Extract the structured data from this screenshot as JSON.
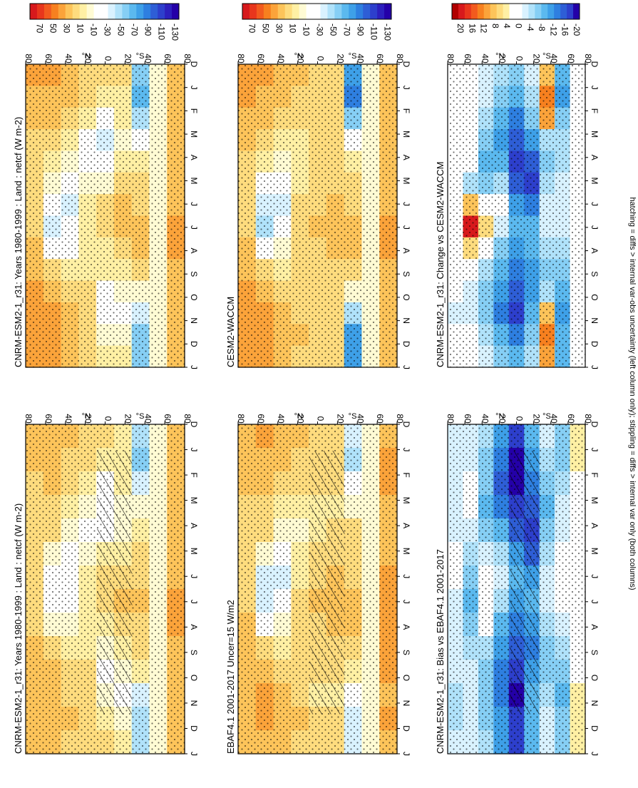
{
  "figure_caption": "hatching = diffs > internal var-obs uncertainty (left column only); stippling = diffs > internal var only (both columns)",
  "colorbars": {
    "absolute": {
      "labels": [
        "70",
        "50",
        "30",
        "10",
        "-10",
        "-30",
        "-50",
        "-70",
        "-90",
        "-110",
        "-130"
      ]
    },
    "difference": {
      "labels": [
        "20",
        "16",
        "12",
        "8",
        "4",
        "0",
        "-4",
        "-8",
        "-12",
        "-16",
        "-20"
      ]
    }
  },
  "palette": {
    "absolute": [
      "#d7191c",
      "#e8361c",
      "#f25a1e",
      "#f7801f",
      "#fba33a",
      "#fdc45a",
      "#fedc7e",
      "#fff0a4",
      "#fffbd4",
      "#ffffff",
      "#ffffff",
      "#d9f2ff",
      "#b0e2fa",
      "#86cff5",
      "#5bb9ef",
      "#3ea0e8",
      "#2e7fe0",
      "#2e5ed6",
      "#2d3fcc",
      "#2c1fbd",
      "#2400a8"
    ],
    "difference": [
      "#b10000",
      "#d7191c",
      "#e8361c",
      "#f25a1e",
      "#f7801f",
      "#fba33a",
      "#fdc45a",
      "#fedc7e",
      "#fff0a4",
      "#ffffff",
      "#ffffff",
      "#d9f2ff",
      "#b0e2fa",
      "#86cff5",
      "#5bb9ef",
      "#3ea0e8",
      "#2e7fe0",
      "#2e5ed6",
      "#2d3fcc",
      "#2400a8"
    ]
  },
  "chart_data": [
    {
      "type": "heatmap",
      "title": "CNRM-ESM2-1_r31: Years 1980-1999 : Land : netcf (W m-2)",
      "x_ticks": [
        "D",
        "J",
        "F",
        "M",
        "A",
        "M",
        "J",
        "J",
        "A",
        "S",
        "O",
        "N",
        "D",
        "J"
      ],
      "y_ticks": [
        "80",
        "60",
        "40",
        "20",
        "0",
        "20",
        "40",
        "60",
        "80"
      ],
      "y_hemisphere_labels": [
        "°N",
        "°S"
      ],
      "colorbar": "absolute",
      "hatching": true,
      "values": [
        [
          20,
          18,
          16,
          14,
          12,
          10,
          12,
          14,
          16,
          18,
          20,
          22,
          20,
          18
        ],
        [
          25,
          22,
          18,
          12,
          8,
          -5,
          -30,
          -35,
          -10,
          10,
          20,
          25,
          25,
          22
        ],
        [
          18,
          16,
          12,
          5,
          -5,
          -20,
          -35,
          -30,
          -10,
          5,
          12,
          16,
          18,
          16
        ],
        [
          15,
          12,
          5,
          -10,
          -15,
          -5,
          0,
          5,
          5,
          0,
          8,
          12,
          15,
          12
        ],
        [
          10,
          5,
          -15,
          -30,
          -20,
          5,
          10,
          8,
          5,
          -5,
          -15,
          -10,
          5,
          8
        ],
        [
          5,
          0,
          0,
          -10,
          -5,
          5,
          15,
          20,
          10,
          0,
          -10,
          -25,
          -5,
          0
        ],
        [
          -50,
          -60,
          -45,
          -10,
          5,
          10,
          15,
          20,
          15,
          10,
          0,
          -40,
          -55,
          -50
        ],
        [
          -5,
          -5,
          -5,
          -5,
          -5,
          -5,
          -5,
          -5,
          -5,
          -5,
          -5,
          -5,
          -5,
          -5
        ],
        [
          20,
          25,
          22,
          20,
          18,
          20,
          25,
          28,
          30,
          25,
          22,
          20,
          22,
          20
        ]
      ]
    },
    {
      "type": "heatmap",
      "title": "CNRM-ESM2-1_r31: Years 1980-1999 : Land : netcf (W m-2)",
      "x_ticks": [
        "D",
        "J",
        "F",
        "M",
        "A",
        "M",
        "J",
        "J",
        "A",
        "S",
        "O",
        "N",
        "D",
        "J"
      ],
      "y_ticks": [
        "80",
        "60",
        "40",
        "20",
        "0",
        "20",
        "40",
        "60",
        "80"
      ],
      "y_hemisphere_labels": [
        "°N",
        "°S"
      ],
      "colorbar": "absolute",
      "hatching": false,
      "values": [
        [
          28,
          25,
          20,
          16,
          12,
          10,
          12,
          14,
          18,
          22,
          28,
          32,
          30,
          28
        ],
        [
          30,
          26,
          20,
          12,
          5,
          -10,
          -35,
          -40,
          -15,
          8,
          22,
          30,
          32,
          30
        ],
        [
          22,
          18,
          12,
          0,
          -10,
          -25,
          -40,
          -35,
          -15,
          5,
          15,
          20,
          22,
          20
        ],
        [
          15,
          12,
          0,
          -15,
          -20,
          -10,
          0,
          5,
          5,
          5,
          10,
          15,
          15,
          15
        ],
        [
          10,
          0,
          -25,
          -40,
          -30,
          -5,
          10,
          10,
          5,
          0,
          -15,
          -30,
          -10,
          5
        ],
        [
          8,
          5,
          5,
          -5,
          0,
          10,
          18,
          22,
          15,
          5,
          -5,
          -20,
          -5,
          5
        ],
        [
          -60,
          -70,
          -55,
          -20,
          5,
          12,
          15,
          20,
          18,
          10,
          -5,
          -40,
          -65,
          -60
        ],
        [
          -5,
          -5,
          -5,
          -5,
          -5,
          -5,
          -5,
          -5,
          -5,
          -5,
          -5,
          -5,
          -5,
          -5
        ],
        [
          22,
          25,
          22,
          20,
          18,
          20,
          25,
          28,
          30,
          25,
          22,
          20,
          22,
          22
        ]
      ]
    },
    {
      "type": "heatmap",
      "title": "EBAF4.1 2001-2017 Uncer=15 W/m2",
      "x_ticks": [
        "D",
        "J",
        "F",
        "M",
        "A",
        "M",
        "J",
        "J",
        "A",
        "S",
        "O",
        "N",
        "D",
        "J"
      ],
      "y_ticks": [
        "80",
        "60",
        "40",
        "20",
        "0",
        "20",
        "40",
        "60",
        "80"
      ],
      "y_hemisphere_labels": [
        "°N",
        "°S"
      ],
      "colorbar": "absolute",
      "hatching": true,
      "values": [
        [
          22,
          20,
          18,
          16,
          14,
          12,
          14,
          16,
          18,
          20,
          24,
          26,
          24,
          22
        ],
        [
          28,
          25,
          20,
          14,
          8,
          -10,
          -40,
          -45,
          -15,
          8,
          22,
          28,
          28,
          26
        ],
        [
          20,
          18,
          14,
          6,
          -5,
          -25,
          -40,
          -35,
          -10,
          6,
          14,
          18,
          20,
          18
        ],
        [
          18,
          15,
          10,
          2,
          -5,
          0,
          5,
          8,
          10,
          8,
          12,
          15,
          18,
          16
        ],
        [
          15,
          12,
          8,
          5,
          5,
          10,
          15,
          18,
          15,
          10,
          8,
          5,
          10,
          12
        ],
        [
          12,
          10,
          8,
          5,
          8,
          12,
          18,
          22,
          20,
          15,
          10,
          5,
          8,
          10
        ],
        [
          -40,
          -50,
          -30,
          -5,
          8,
          12,
          15,
          20,
          18,
          12,
          0,
          -30,
          -45,
          -40
        ],
        [
          -5,
          -5,
          -5,
          -5,
          -5,
          -5,
          -5,
          -5,
          -5,
          -5,
          -5,
          -5,
          -5,
          -5
        ],
        [
          25,
          30,
          28,
          25,
          22,
          25,
          30,
          35,
          35,
          30,
          28,
          25,
          28,
          25
        ]
      ]
    },
    {
      "type": "heatmap",
      "title": "CESM2-WACCM",
      "x_ticks": [
        "D",
        "J",
        "F",
        "M",
        "A",
        "M",
        "J",
        "J",
        "A",
        "S",
        "O",
        "N",
        "D",
        "J"
      ],
      "y_ticks": [
        "80",
        "60",
        "40",
        "20",
        "0",
        "20",
        "40",
        "60",
        "80"
      ],
      "y_hemisphere_labels": [
        "°N",
        "°S"
      ],
      "colorbar": "absolute",
      "hatching": false,
      "values": [
        [
          30,
          28,
          22,
          18,
          14,
          12,
          14,
          16,
          20,
          25,
          30,
          35,
          32,
          30
        ],
        [
          30,
          26,
          20,
          12,
          5,
          -15,
          -45,
          -50,
          -20,
          8,
          22,
          30,
          32,
          30
        ],
        [
          22,
          18,
          12,
          2,
          -8,
          -25,
          -40,
          -35,
          -10,
          5,
          15,
          22,
          22,
          20
        ],
        [
          18,
          15,
          10,
          5,
          0,
          5,
          10,
          12,
          10,
          8,
          12,
          16,
          18,
          16
        ],
        [
          15,
          12,
          10,
          8,
          8,
          12,
          15,
          18,
          15,
          12,
          10,
          8,
          12,
          14
        ],
        [
          12,
          10,
          10,
          8,
          10,
          14,
          20,
          24,
          20,
          15,
          10,
          8,
          10,
          12
        ],
        [
          -80,
          -90,
          -60,
          -20,
          5,
          12,
          15,
          20,
          18,
          10,
          -5,
          -50,
          -85,
          -80
        ],
        [
          -5,
          -5,
          -5,
          -5,
          -5,
          -5,
          -5,
          -5,
          -5,
          -5,
          -5,
          -5,
          -5,
          -5
        ],
        [
          22,
          25,
          22,
          20,
          18,
          20,
          25,
          28,
          30,
          25,
          22,
          20,
          22,
          22
        ]
      ]
    },
    {
      "type": "heatmap",
      "title": "CNRM-ESM2-1_r31: Bias vs EBAF4.1 2001-2017",
      "x_ticks": [
        "D",
        "J",
        "F",
        "M",
        "A",
        "M",
        "J",
        "J",
        "A",
        "S",
        "O",
        "N",
        "D",
        "J"
      ],
      "y_ticks": [
        "80",
        "60",
        "40",
        "20",
        "0",
        "20",
        "40",
        "60",
        "80"
      ],
      "y_hemisphere_labels": [
        "°N",
        "°S"
      ],
      "colorbar": "difference",
      "hatching": true,
      "values": [
        [
          -4,
          -4,
          -4,
          -4,
          -3,
          -2,
          -2,
          -3,
          -4,
          -4,
          -4,
          -5,
          -5,
          -4
        ],
        [
          -3,
          -3,
          -2,
          -2,
          -4,
          -6,
          -8,
          -10,
          -8,
          -6,
          -4,
          -4,
          -3,
          -3
        ],
        [
          -6,
          -8,
          -8,
          -10,
          -8,
          -4,
          0,
          2,
          -2,
          -6,
          -8,
          -8,
          -7,
          -6
        ],
        [
          -12,
          -14,
          -16,
          -14,
          -10,
          -6,
          -4,
          -6,
          -10,
          -12,
          -14,
          -14,
          -12,
          -12
        ],
        [
          -18,
          -20,
          -20,
          -18,
          -16,
          -12,
          -10,
          -12,
          -14,
          -16,
          -18,
          -20,
          -18,
          -18
        ],
        [
          -10,
          -12,
          -14,
          -16,
          -18,
          -16,
          -12,
          -10,
          -12,
          -14,
          -12,
          -10,
          -10,
          -10
        ],
        [
          -4,
          -6,
          -8,
          -10,
          -8,
          -6,
          -4,
          -4,
          -6,
          -8,
          -8,
          -6,
          -4,
          -4
        ],
        [
          -8,
          -8,
          -6,
          -4,
          -4,
          -2,
          -2,
          -2,
          -4,
          -6,
          -8,
          -10,
          -8,
          -8
        ],
        [
          4,
          4,
          2,
          0,
          0,
          0,
          0,
          0,
          0,
          0,
          2,
          4,
          4,
          4
        ]
      ]
    },
    {
      "type": "heatmap",
      "title": "CNRM-ESM2-1_r31: Change vs CESM2-WACCM",
      "x_ticks": [
        "D",
        "J",
        "F",
        "M",
        "A",
        "M",
        "J",
        "J",
        "A",
        "S",
        "O",
        "N",
        "D",
        "J"
      ],
      "y_ticks": [
        "80",
        "60",
        "40",
        "20",
        "0",
        "20",
        "40",
        "60",
        "80"
      ],
      "y_hemisphere_labels": [
        "°N",
        "°S"
      ],
      "colorbar": "difference",
      "hatching": false,
      "values": [
        [
          -2,
          -2,
          -2,
          -1,
          0,
          0,
          0,
          0,
          -1,
          -2,
          -2,
          -3,
          -2,
          -2
        ],
        [
          0,
          0,
          0,
          0,
          -2,
          -6,
          8,
          18,
          6,
          -2,
          -4,
          -4,
          -2,
          0
        ],
        [
          -4,
          -4,
          -6,
          -8,
          -10,
          -8,
          0,
          6,
          0,
          -6,
          -8,
          -8,
          -6,
          -4
        ],
        [
          -6,
          -8,
          -10,
          -12,
          -10,
          -6,
          -2,
          -4,
          -8,
          -10,
          -12,
          -14,
          -10,
          -8
        ],
        [
          -8,
          -10,
          -14,
          -16,
          -18,
          -16,
          -12,
          -10,
          -12,
          -14,
          -16,
          -18,
          -14,
          -10
        ],
        [
          -4,
          -6,
          -8,
          -12,
          -16,
          -18,
          -14,
          -10,
          -10,
          -12,
          -12,
          -10,
          -8,
          -6
        ],
        [
          8,
          12,
          10,
          -6,
          -8,
          -6,
          -4,
          -4,
          -6,
          -8,
          -6,
          8,
          12,
          10
        ],
        [
          -10,
          -12,
          -8,
          -6,
          -6,
          -4,
          -4,
          -4,
          -6,
          -8,
          -10,
          -12,
          -10,
          -10
        ],
        [
          2,
          2,
          0,
          0,
          0,
          0,
          0,
          0,
          0,
          0,
          0,
          2,
          2,
          2
        ]
      ]
    }
  ]
}
